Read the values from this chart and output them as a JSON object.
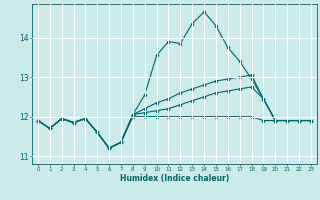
{
  "xlabel": "Humidex (Indice chaleur)",
  "ylabel": "",
  "xlim": [
    -0.5,
    23.5
  ],
  "ylim": [
    10.8,
    14.85
  ],
  "yticks": [
    11,
    12,
    13,
    14
  ],
  "xticks": [
    0,
    1,
    2,
    3,
    4,
    5,
    6,
    7,
    8,
    9,
    10,
    11,
    12,
    13,
    14,
    15,
    16,
    17,
    18,
    19,
    20,
    21,
    22,
    23
  ],
  "background_color": "#cceaea",
  "grid_color": "#ffffff",
  "line_color": "#006666",
  "line1": [
    11.9,
    11.7,
    11.95,
    11.85,
    11.95,
    11.6,
    11.2,
    11.35,
    12.0,
    12.0,
    12.0,
    12.0,
    12.0,
    12.0,
    12.0,
    12.0,
    12.0,
    12.0,
    12.0,
    11.9,
    11.9,
    11.9,
    11.9,
    11.9
  ],
  "line2": [
    11.9,
    11.7,
    11.95,
    11.85,
    11.95,
    11.6,
    11.2,
    11.35,
    12.05,
    12.55,
    13.55,
    13.9,
    13.85,
    14.35,
    14.65,
    14.3,
    13.75,
    13.4,
    12.95,
    12.45,
    11.9,
    11.9,
    11.9,
    11.9
  ],
  "line3": [
    11.9,
    11.7,
    11.95,
    11.85,
    11.95,
    11.6,
    11.2,
    11.35,
    12.05,
    12.2,
    12.35,
    12.45,
    12.6,
    12.7,
    12.8,
    12.9,
    12.95,
    13.0,
    13.05,
    12.45,
    11.9,
    11.9,
    11.9,
    11.9
  ],
  "line4": [
    11.9,
    11.7,
    11.95,
    11.85,
    11.95,
    11.6,
    11.2,
    11.35,
    12.05,
    12.1,
    12.15,
    12.2,
    12.3,
    12.4,
    12.5,
    12.6,
    12.65,
    12.7,
    12.75,
    12.45,
    11.9,
    11.9,
    11.9,
    11.9
  ]
}
